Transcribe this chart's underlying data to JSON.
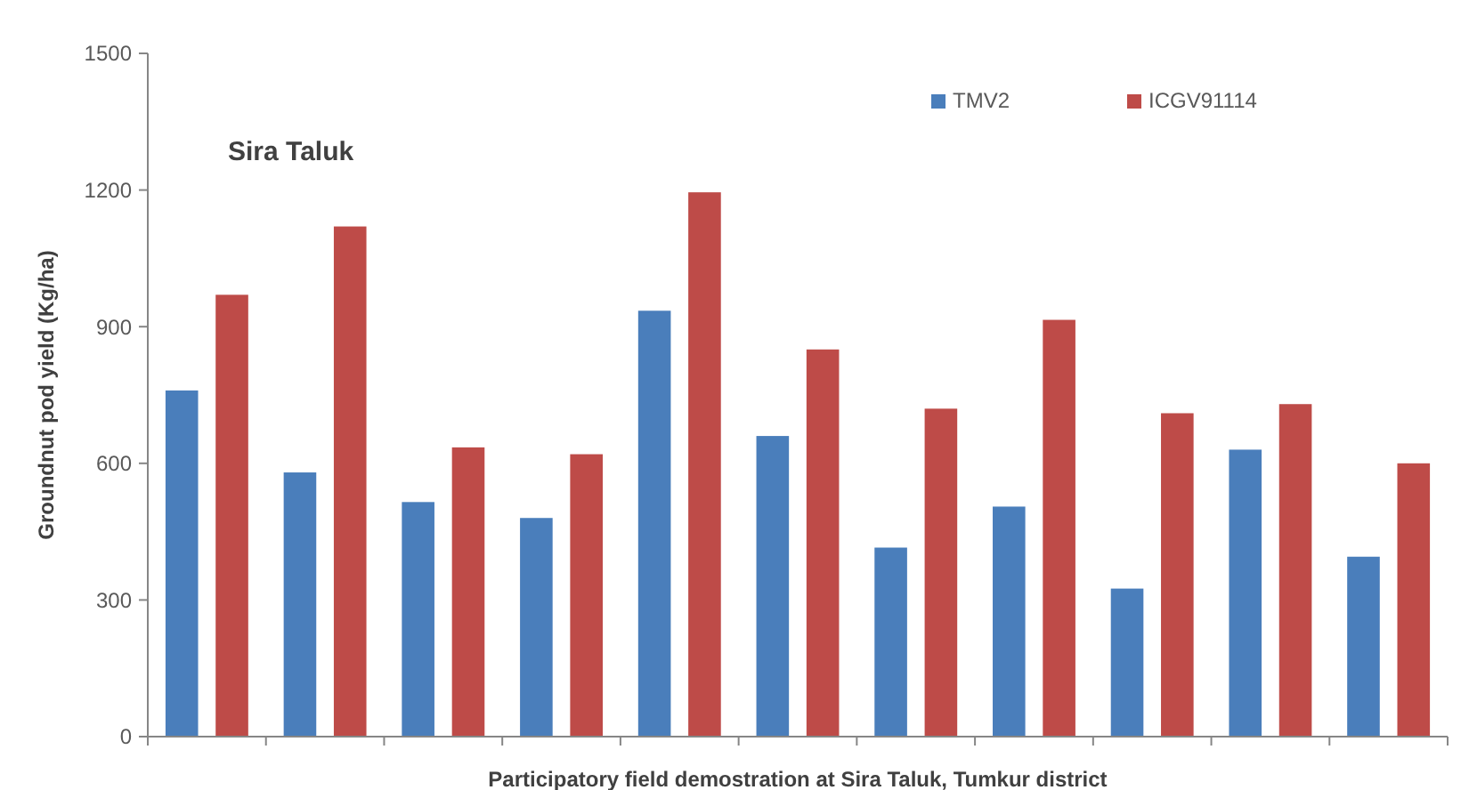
{
  "chart_data": {
    "type": "bar",
    "title": "Sira Taluk",
    "xlabel": "Participatory field demostration at Sira Taluk, Tumkur district",
    "ylabel": "Groundnut pod yield (Kg/ha)",
    "categories": [
      null,
      null,
      null,
      null,
      null,
      null,
      null,
      null,
      null,
      null,
      null
    ],
    "series": [
      {
        "name": "TMV2",
        "color": "#4a7ebb",
        "values": [
          760,
          580,
          515,
          480,
          935,
          660,
          415,
          505,
          325,
          630,
          395
        ]
      },
      {
        "name": "ICGV91114",
        "color": "#be4b48",
        "values": [
          970,
          1120,
          635,
          620,
          1195,
          850,
          720,
          915,
          710,
          730,
          600
        ]
      }
    ],
    "ylim": [
      0,
      1500
    ],
    "yticks": [
      0,
      300,
      600,
      900,
      1200,
      1500
    ],
    "grid": false,
    "legend": "top right"
  }
}
